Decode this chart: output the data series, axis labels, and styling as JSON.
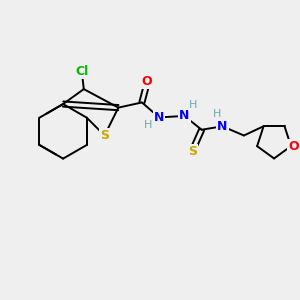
{
  "bg_color": "#efefef",
  "atom_colors": {
    "C": "#000000",
    "H": "#6aabab",
    "N": "#0000ff",
    "O": "#ff0000",
    "S": "#c8a800",
    "Cl": "#00bb00"
  },
  "figsize": [
    3.0,
    3.0
  ],
  "dpi": 100
}
